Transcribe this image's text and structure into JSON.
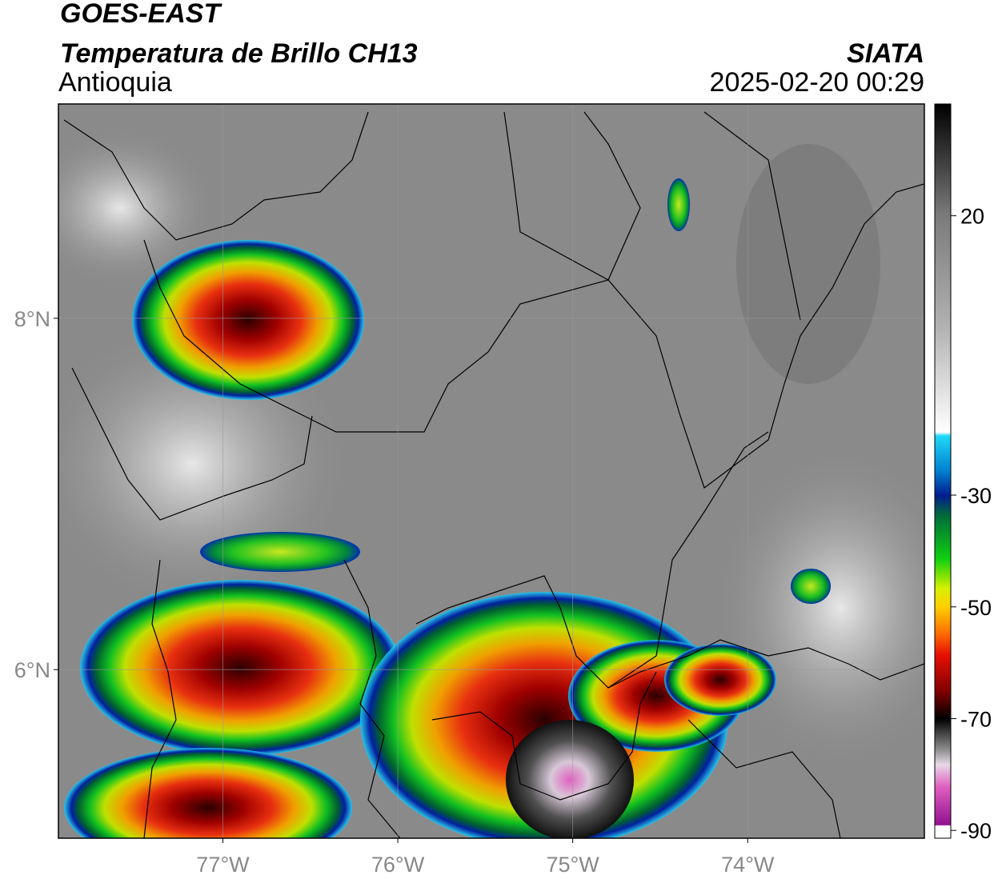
{
  "header": {
    "title": "GOES-EAST",
    "subtitle": "Temperatura de Brillo CH13",
    "region": "Antioquia",
    "source": "SIATA",
    "datetime": "2025-02-20 00:29"
  },
  "map": {
    "xlim": [
      -77.94,
      -72.99
    ],
    "ylim": [
      5.04,
      9.22
    ],
    "xticks": [
      {
        "value": -77,
        "label": "77°W"
      },
      {
        "value": -76,
        "label": "76°W"
      },
      {
        "value": -75,
        "label": "75°W"
      },
      {
        "value": -74,
        "label": "74°W"
      }
    ],
    "yticks": [
      {
        "value": 8,
        "label": "8°N"
      },
      {
        "value": 6,
        "label": "6°N"
      }
    ],
    "grid": true
  },
  "colorbar": {
    "lim": [
      -91.4,
      40
    ],
    "ticks": [
      20,
      -30,
      -50,
      -70,
      -90
    ]
  }
}
